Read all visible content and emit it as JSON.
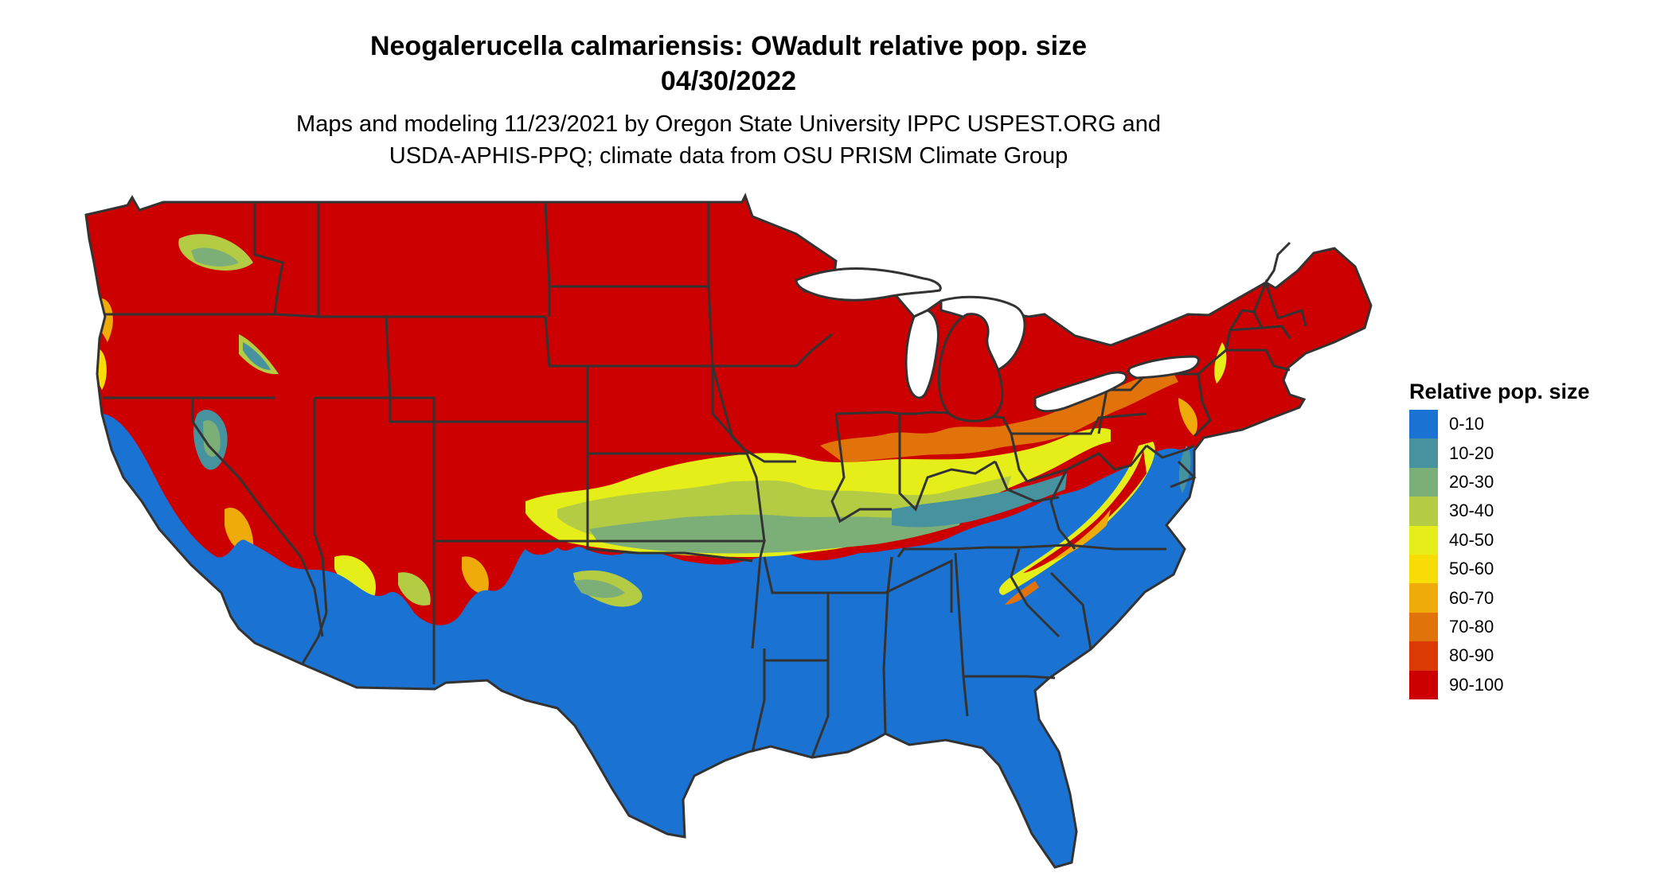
{
  "header": {
    "title_line1": "Neogalerucella calmariensis: OWadult relative pop. size",
    "title_line2": "04/30/2022",
    "subtitle_line1": "Maps and modeling 11/23/2021 by Oregon State University IPPC USPEST.ORG and",
    "subtitle_line2": "USDA-APHIS-PPQ; climate data from OSU PRISM Climate Group"
  },
  "legend": {
    "title": "Relative pop. size",
    "items": [
      {
        "label": "0-10",
        "color": "#1a73d2"
      },
      {
        "label": "10-20",
        "color": "#46929f"
      },
      {
        "label": "20-30",
        "color": "#7cae78"
      },
      {
        "label": "30-40",
        "color": "#b3cc44"
      },
      {
        "label": "40-50",
        "color": "#e6ee1a"
      },
      {
        "label": "50-60",
        "color": "#f7dc05"
      },
      {
        "label": "60-70",
        "color": "#eeab0a"
      },
      {
        "label": "70-80",
        "color": "#e2720a"
      },
      {
        "label": "80-90",
        "color": "#db3a05"
      },
      {
        "label": "90-100",
        "color": "#cc0000"
      }
    ]
  },
  "map": {
    "state_border_color": "#333333",
    "water_color": "#ffffff"
  }
}
